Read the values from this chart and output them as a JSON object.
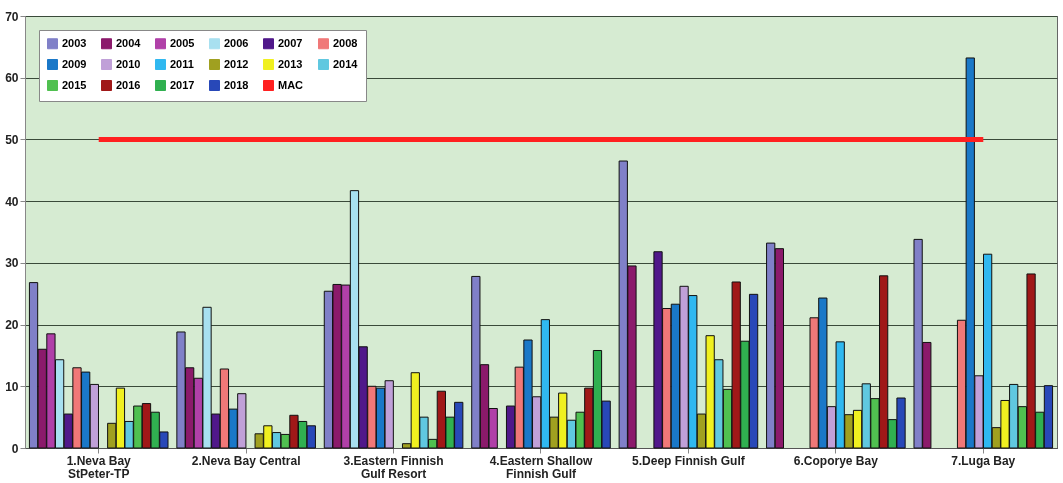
{
  "chart_data": {
    "type": "bar",
    "categories": [
      "1.Neva Bay StPeter-TP",
      "2.Neva Bay Central",
      "3.Eastern Finnish Gulf Resort",
      "4.Eastern Shallow Finnish Gulf",
      "5.Deep Finnish Gulf",
      "6.Coporye Bay",
      "7.Luga Bay"
    ],
    "series": [
      {
        "name": "2003",
        "color": "#8080c8",
        "values": [
          26.8,
          18.8,
          25.4,
          27.8,
          46.5,
          33.2,
          33.8
        ]
      },
      {
        "name": "2004",
        "color": "#8b1a6b",
        "values": [
          16,
          13,
          26.5,
          13.5,
          29.5,
          32.3,
          17.1
        ]
      },
      {
        "name": "2005",
        "color": "#b040a8",
        "values": [
          18.5,
          11.3,
          26.4,
          6.4,
          null,
          null,
          null
        ]
      },
      {
        "name": "2006",
        "color": "#a8e0f0",
        "values": [
          14.3,
          22.8,
          41.7,
          null,
          null,
          null,
          null
        ]
      },
      {
        "name": "2007",
        "color": "#50188a",
        "values": [
          5.5,
          5.5,
          16.4,
          6.8,
          31.8,
          null,
          null
        ]
      },
      {
        "name": "2008",
        "color": "#f07878",
        "values": [
          13,
          12.8,
          10,
          13.1,
          22.6,
          21.1,
          20.7
        ]
      },
      {
        "name": "2009",
        "color": "#1a78c8",
        "values": [
          12.3,
          6.3,
          9.7,
          17.5,
          23.3,
          24.3,
          63.2
        ]
      },
      {
        "name": "2010",
        "color": "#c0a0d8",
        "values": [
          10.3,
          8.8,
          10.9,
          8.3,
          26.2,
          6.7,
          11.7
        ]
      },
      {
        "name": "2011",
        "color": "#30b8f0",
        "values": [
          null,
          null,
          null,
          20.8,
          24.7,
          17.2,
          31.4
        ]
      },
      {
        "name": "2012",
        "color": "#a0a020",
        "values": [
          4,
          2.3,
          0.7,
          5,
          5.5,
          5.4,
          3.3
        ]
      },
      {
        "name": "2013",
        "color": "#f0f020",
        "values": [
          9.7,
          3.6,
          12.2,
          8.9,
          18.2,
          6.1,
          7.7
        ]
      },
      {
        "name": "2014",
        "color": "#60c8e0",
        "values": [
          4.3,
          2.5,
          5,
          4.5,
          14.3,
          10.4,
          10.3
        ]
      },
      {
        "name": "2015",
        "color": "#50c050",
        "values": [
          6.8,
          2.2,
          1.4,
          5.8,
          9.5,
          8,
          6.7
        ]
      },
      {
        "name": "2016",
        "color": "#a01818",
        "values": [
          7.2,
          5.3,
          9.2,
          9.7,
          26.9,
          27.9,
          28.2
        ]
      },
      {
        "name": "2017",
        "color": "#30b050",
        "values": [
          5.8,
          4.3,
          5,
          15.8,
          17.3,
          4.6,
          5.8
        ]
      },
      {
        "name": "2018",
        "color": "#2848b8",
        "values": [
          2.6,
          3.6,
          7.4,
          7.6,
          24.9,
          8.1,
          10.1
        ]
      },
      {
        "name": "MAC",
        "type": "line",
        "color": "#ff2020",
        "values": [
          50,
          50,
          50,
          50,
          50,
          50,
          50
        ]
      }
    ],
    "ylim": [
      0,
      70
    ],
    "yticks": [
      0,
      10,
      20,
      30,
      40,
      50,
      60,
      70
    ],
    "grid": "y",
    "legend": "top left"
  }
}
